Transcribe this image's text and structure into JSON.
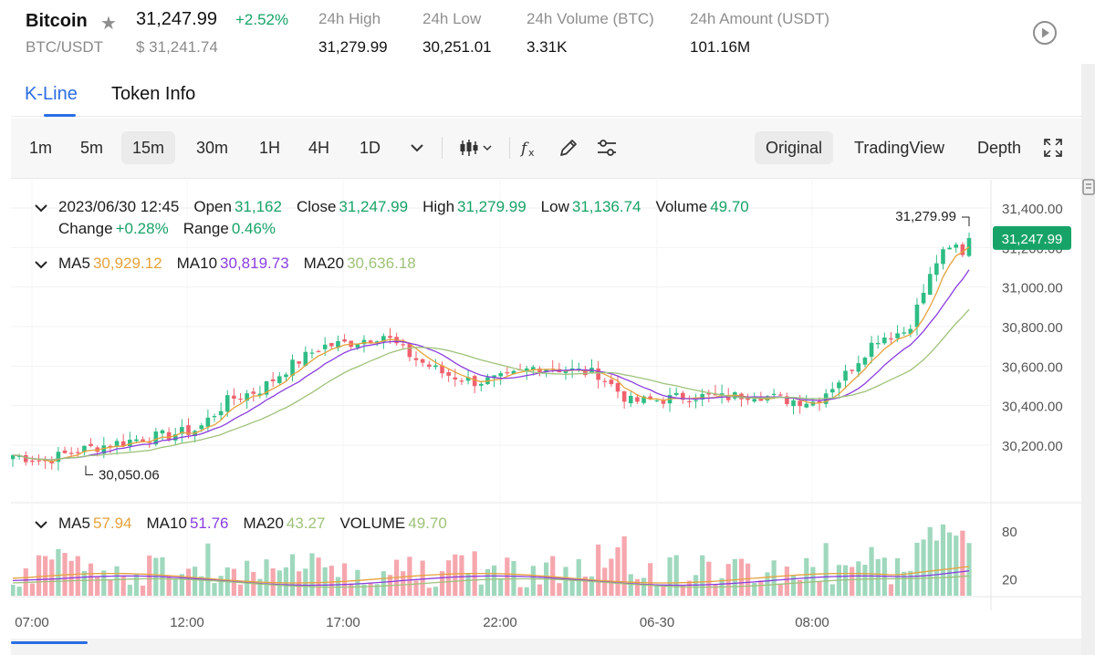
{
  "header": {
    "coin_name": "Bitcoin",
    "pair": "BTC/USDT",
    "last_price": "31,247.99",
    "change_pct": "+2.52%",
    "usd_price": "$ 31,241.74",
    "stats": [
      {
        "label": "24h High",
        "value": "31,279.99"
      },
      {
        "label": "24h Low",
        "value": "30,251.01"
      },
      {
        "label": "24h Volume (BTC)",
        "value": "3.31K"
      },
      {
        "label": "24h Amount (USDT)",
        "value": "101.16M"
      }
    ],
    "icons": {
      "favorite": "star-icon",
      "play": "play-circle-icon"
    }
  },
  "tabs": [
    {
      "label": "K-Line",
      "active": true
    },
    {
      "label": "Token Info",
      "active": false
    }
  ],
  "toolbar": {
    "timeframes": [
      "1m",
      "5m",
      "15m",
      "30m",
      "1H",
      "4H",
      "1D"
    ],
    "active_timeframe": "15m",
    "tool_icons": [
      "chevron-down-icon",
      "candlestick-type-icon",
      "indicator-fx-icon",
      "pencil-draw-icon",
      "settings-sliders-icon"
    ],
    "views": [
      "Original",
      "TradingView",
      "Depth"
    ],
    "active_view": "Original",
    "fullscreen_icon": "fullscreen-icon"
  },
  "candle_info": {
    "datetime": "2023/06/30 12:45",
    "open_label": "Open",
    "open": "31,162",
    "close_label": "Close",
    "close": "31,247.99",
    "high_label": "High",
    "high": "31,279.99",
    "low_label": "Low",
    "low": "31,136.74",
    "volume_label": "Volume",
    "volume": "49.70",
    "change_label": "Change",
    "change": "+0.28%",
    "range_label": "Range",
    "range": "0.46%"
  },
  "ma_info": {
    "ma5_label": "MA5",
    "ma5": "30,929.12",
    "ma10_label": "MA10",
    "ma10": "30,819.73",
    "ma20_label": "MA20",
    "ma20": "30,636.18"
  },
  "volume_info": {
    "ma5_label": "MA5",
    "ma5": "57.94",
    "ma10_label": "MA10",
    "ma10": "51.76",
    "ma20_label": "MA20",
    "ma20": "43.27",
    "volume_label": "VOLUME",
    "volume": "49.70"
  },
  "colors": {
    "up": "#2ebd85",
    "down": "#f0616d",
    "ma5": "#e6a23c",
    "ma10": "#8a3ee0",
    "ma20": "#9fc27a",
    "vol_up": "#9fd8bd",
    "vol_down": "#f6a7ae",
    "accent": "#2b6de4",
    "price_tag": "#17a367"
  },
  "chart_data": {
    "type": "candlestick",
    "price_axis_labels": [
      "31,400.00",
      "31,200.00",
      "31,000.00",
      "30,800.00",
      "30,600.00",
      "30,400.00",
      "30,200.00"
    ],
    "price_axis_values": [
      31400,
      31200,
      31000,
      30800,
      30600,
      30400,
      30200
    ],
    "price_range": [
      30000,
      31450
    ],
    "volume_axis_labels": [
      "80",
      "20"
    ],
    "volume_axis_values": [
      80,
      20
    ],
    "volume_range": [
      0,
      110
    ],
    "time_labels": [
      "07:00",
      "12:00",
      "17:00",
      "22:00",
      "06-30",
      "08:00"
    ],
    "current_price_label": "31,247.99",
    "high_marker": {
      "label": "31,279.99",
      "value": 31279.99
    },
    "low_marker": {
      "label": "30,050.06",
      "value": 30050.06
    },
    "key_closes": [
      30150,
      30120,
      30170,
      30200,
      30230,
      30250,
      30280,
      30430,
      30480,
      30600,
      30700,
      30720,
      30760,
      30640,
      30560,
      30520,
      30540,
      30600,
      30580,
      30560,
      30420,
      30430,
      30450,
      30440,
      30460,
      30430,
      30420,
      30560,
      30740,
      30780,
      31150,
      31248
    ]
  }
}
